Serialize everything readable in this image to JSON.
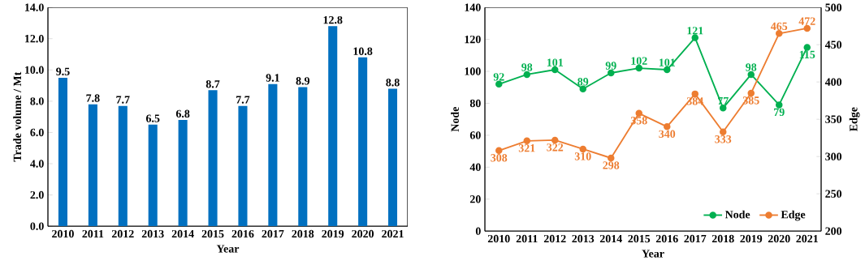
{
  "chart_data": [
    {
      "type": "bar",
      "categories": [
        "2010",
        "2011",
        "2012",
        "2013",
        "2014",
        "2015",
        "2016",
        "2017",
        "2018",
        "2019",
        "2020",
        "2021"
      ],
      "values": [
        9.5,
        7.8,
        7.7,
        6.5,
        6.8,
        8.7,
        7.7,
        9.1,
        8.9,
        12.8,
        10.8,
        8.8
      ],
      "color": "#0070c0",
      "xlabel": "Year",
      "ylabel": "Trade volume / Mt",
      "ylim": [
        0,
        14
      ],
      "yticks": [
        {
          "value": 0,
          "label": "0.0"
        },
        {
          "value": 2,
          "label": "2.0"
        },
        {
          "value": 4,
          "label": "4.0"
        },
        {
          "value": 6,
          "label": "6.0"
        },
        {
          "value": 8,
          "label": "8.0"
        },
        {
          "value": 10,
          "label": "10.0"
        },
        {
          "value": 12,
          "label": "12.0"
        },
        {
          "value": 14,
          "label": "14.0"
        }
      ],
      "data_labels": true
    },
    {
      "type": "line",
      "categories": [
        "2010",
        "2011",
        "2012",
        "2013",
        "2014",
        "2015",
        "2016",
        "2017",
        "2018",
        "2019",
        "2020",
        "2021"
      ],
      "series": [
        {
          "name": "Node",
          "color": "#00b050",
          "values": [
            92,
            98,
            101,
            89,
            99,
            102,
            101,
            121,
            77,
            98,
            79,
            115
          ]
        },
        {
          "name": "Edge",
          "color": "#ed7d31",
          "axis": "y2",
          "values": [
            308,
            321,
            322,
            310,
            298,
            358,
            340,
            384,
            333,
            385,
            465,
            472
          ]
        }
      ],
      "xlabel": "Year",
      "ylabel": "Node",
      "y2label": "Edge",
      "ylim": [
        0,
        140
      ],
      "yticks": [
        0,
        20,
        40,
        60,
        80,
        100,
        120,
        140
      ],
      "y2lim": [
        200,
        500
      ],
      "y2ticks": [
        200,
        250,
        300,
        350,
        400,
        450,
        500
      ],
      "legend": "bottom right",
      "marker": "circle",
      "data_labels": true
    }
  ]
}
